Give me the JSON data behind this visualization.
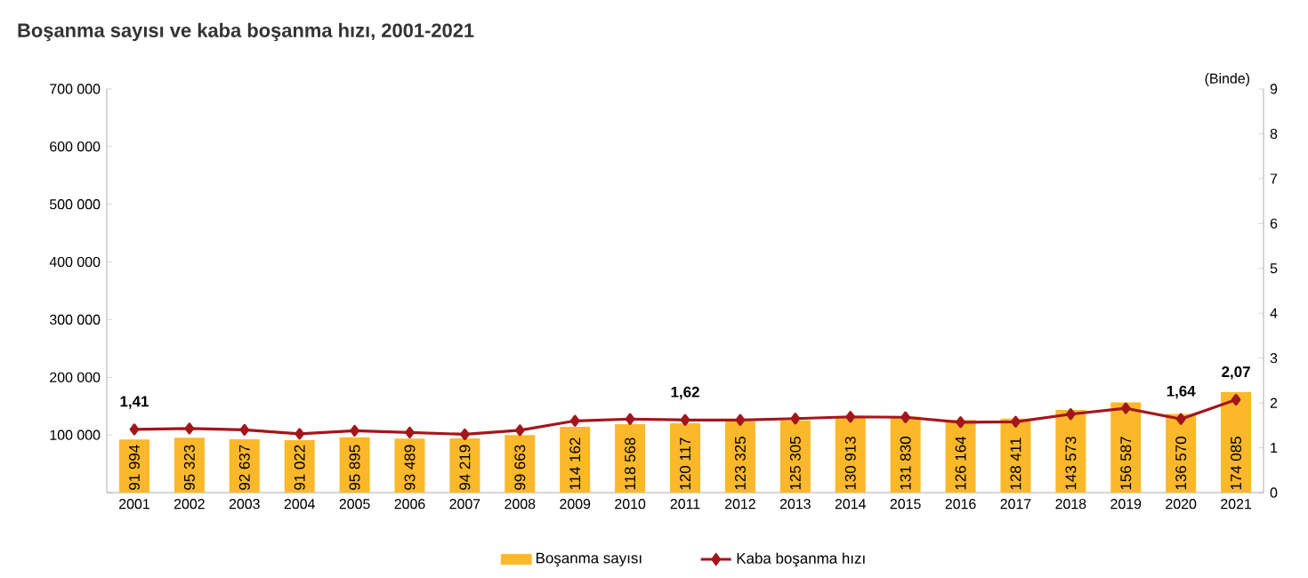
{
  "chart_data": {
    "type": "bar",
    "title": "Boşanma sayısı ve kaba boşanma hızı, 2001-2021",
    "y2label": "(Binde)",
    "categories": [
      "2001",
      "2002",
      "2003",
      "2004",
      "2005",
      "2006",
      "2007",
      "2008",
      "2009",
      "2010",
      "2011",
      "2012",
      "2013",
      "2014",
      "2015",
      "2016",
      "2017",
      "2018",
      "2019",
      "2020",
      "2021"
    ],
    "series": [
      {
        "name": "Boşanma sayısı",
        "color": "#fbb82a",
        "values": [
          91994,
          95323,
          92637,
          91022,
          95895,
          93489,
          94219,
          99663,
          114162,
          118568,
          120117,
          123325,
          125305,
          130913,
          131830,
          126164,
          128411,
          143573,
          156587,
          136570,
          174085
        ],
        "value_labels": [
          "91 994",
          "95 323",
          "92 637",
          "91 022",
          "95 895",
          "93 489",
          "94 219",
          "99 663",
          "114 162",
          "118 568",
          "120 117",
          "123 325",
          "125 305",
          "130 913",
          "131 830",
          "126 164",
          "128 411",
          "143 573",
          "156 587",
          "136 570",
          "174 085"
        ]
      },
      {
        "name": "Kaba boşanma hızı",
        "type": "line",
        "axis": "y2",
        "color": "#a3161c",
        "marker": "diamond",
        "line_style": "solid",
        "values": [
          1.41,
          1.43,
          1.4,
          1.31,
          1.38,
          1.34,
          1.3,
          1.39,
          1.6,
          1.64,
          1.62,
          1.62,
          1.65,
          1.69,
          1.68,
          1.57,
          1.58,
          1.75,
          1.88,
          1.64,
          2.07
        ],
        "value_labels": [
          "1,41",
          null,
          null,
          null,
          null,
          null,
          null,
          null,
          null,
          null,
          "1,62",
          null,
          null,
          null,
          null,
          null,
          null,
          null,
          null,
          "1,64",
          "2,07"
        ]
      }
    ],
    "ylim": [
      0,
      700000
    ],
    "yticks": [
      {
        "value": 0,
        "label": null
      },
      {
        "value": 100000,
        "label": "100 000"
      },
      {
        "value": 200000,
        "label": "200 000"
      },
      {
        "value": 300000,
        "label": "300 000"
      },
      {
        "value": 400000,
        "label": "400 000"
      },
      {
        "value": 500000,
        "label": "500 000"
      },
      {
        "value": 600000,
        "label": "600 000"
      },
      {
        "value": 700000,
        "label": "700 000"
      }
    ],
    "y2lim": [
      0,
      9
    ],
    "y2ticks": [
      0,
      1,
      2,
      3,
      4,
      5,
      6,
      7,
      8,
      9
    ],
    "legend": "bottom"
  }
}
